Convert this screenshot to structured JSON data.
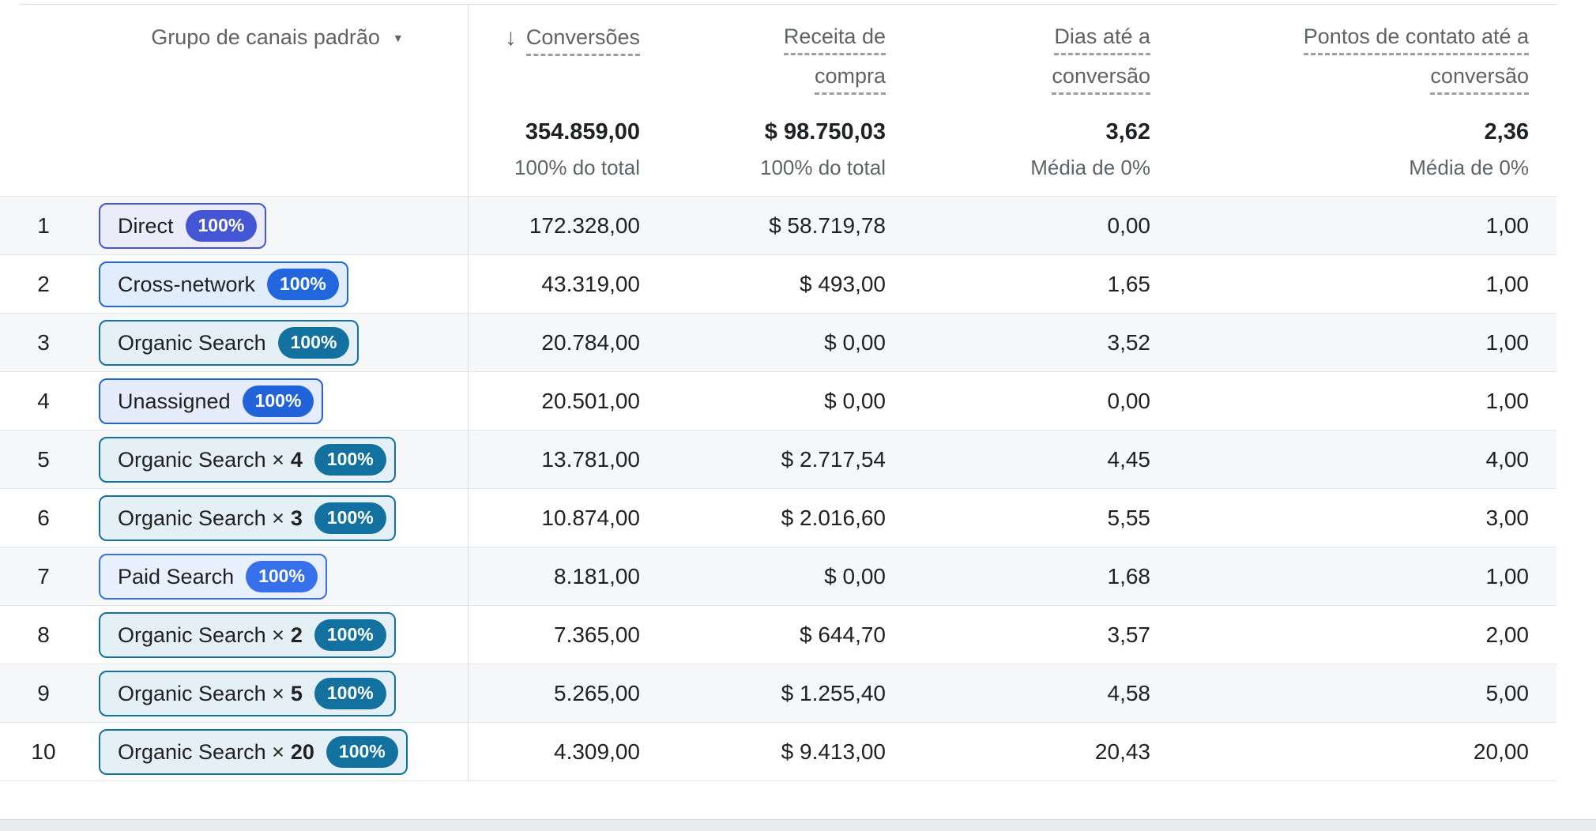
{
  "table": {
    "dimension": {
      "label": "Grupo de canais padrão",
      "caret_icon": "▼"
    },
    "sort_icon": "↓",
    "columns": [
      {
        "line1": "Conversões",
        "line2": "",
        "sorted": true,
        "total": "354.859,00",
        "total_sub": "100% do total"
      },
      {
        "line1": "Receita de",
        "line2": "compra",
        "sorted": false,
        "total": "$ 98.750,03",
        "total_sub": "100% do total"
      },
      {
        "line1": "Dias até a",
        "line2": "conversão",
        "sorted": false,
        "total": "3,62",
        "total_sub": "Média de 0%"
      },
      {
        "line1": "Pontos de contato até a",
        "line2": "conversão",
        "sorted": false,
        "total": "2,36",
        "total_sub": "Média de 0%"
      }
    ],
    "rows": [
      {
        "index": "1",
        "channel": "Direct",
        "mult": "",
        "badge": "100%",
        "chip_color": "#4556d4",
        "chip_bg": "#eaecfa",
        "values": [
          "172.328,00",
          "$ 58.719,78",
          "0,00",
          "1,00"
        ]
      },
      {
        "index": "2",
        "channel": "Cross-network",
        "mult": "",
        "badge": "100%",
        "chip_color": "#2166dc",
        "chip_bg": "#e2edfb",
        "values": [
          "43.319,00",
          "$ 493,00",
          "1,65",
          "1,00"
        ]
      },
      {
        "index": "3",
        "channel": "Organic Search",
        "mult": "",
        "badge": "100%",
        "chip_color": "#12719f",
        "chip_bg": "#e4f0f5",
        "values": [
          "20.784,00",
          "$ 0,00",
          "3,52",
          "1,00"
        ]
      },
      {
        "index": "4",
        "channel": "Unassigned",
        "mult": "",
        "badge": "100%",
        "chip_color": "#2363d9",
        "chip_bg": "#e5edfc",
        "values": [
          "20.501,00",
          "$ 0,00",
          "0,00",
          "1,00"
        ]
      },
      {
        "index": "5",
        "channel": "Organic Search ×",
        "mult": "4",
        "badge": "100%",
        "chip_color": "#12719f",
        "chip_bg": "#e4f0f5",
        "values": [
          "13.781,00",
          "$ 2.717,54",
          "4,45",
          "4,00"
        ]
      },
      {
        "index": "6",
        "channel": "Organic Search ×",
        "mult": "3",
        "badge": "100%",
        "chip_color": "#12719f",
        "chip_bg": "#e4f0f5",
        "values": [
          "10.874,00",
          "$ 2.016,60",
          "5,55",
          "3,00"
        ]
      },
      {
        "index": "7",
        "channel": "Paid Search",
        "mult": "",
        "badge": "100%",
        "chip_color": "#3670ea",
        "chip_bg": "#e8effd",
        "values": [
          "8.181,00",
          "$ 0,00",
          "1,68",
          "1,00"
        ]
      },
      {
        "index": "8",
        "channel": "Organic Search ×",
        "mult": "2",
        "badge": "100%",
        "chip_color": "#12719f",
        "chip_bg": "#e4f0f5",
        "values": [
          "7.365,00",
          "$ 644,70",
          "3,57",
          "2,00"
        ]
      },
      {
        "index": "9",
        "channel": "Organic Search ×",
        "mult": "5",
        "badge": "100%",
        "chip_color": "#12719f",
        "chip_bg": "#e4f0f5",
        "values": [
          "5.265,00",
          "$ 1.255,40",
          "4,58",
          "5,00"
        ]
      },
      {
        "index": "10",
        "channel": "Organic Search ×",
        "mult": "20",
        "badge": "100%",
        "chip_color": "#12719f",
        "chip_bg": "#e4f0f5",
        "values": [
          "4.309,00",
          "$ 9.413,00",
          "20,43",
          "20,00"
        ]
      }
    ]
  }
}
